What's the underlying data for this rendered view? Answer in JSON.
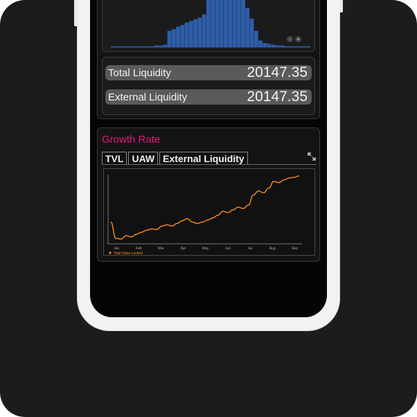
{
  "liquidity": {
    "total_label": "Total Liquidity",
    "total_value": "20147.35",
    "external_label": "External Liquidity",
    "external_value": "20147.35",
    "zoom_out": "-",
    "zoom_in": "+"
  },
  "growth": {
    "title": "Growth Rate",
    "tabs": [
      "TVL",
      "UAW",
      "External Liquidity"
    ],
    "title_color": "#e0197d"
  },
  "chart_data": {
    "type": "line",
    "x_labels": [
      "Jan",
      "Feb",
      "Mar",
      "Apr",
      "May",
      "Jun",
      "Jul",
      "Aug",
      "Sep"
    ],
    "series": [
      {
        "name": "Total Value Locked",
        "color": "#ff8c1a",
        "values": [
          30,
          6,
          5,
          10,
          8,
          12,
          15,
          18,
          20,
          19,
          24,
          26,
          24,
          28,
          32,
          35,
          30,
          28,
          30,
          33,
          36,
          40,
          46,
          44,
          48,
          52,
          50,
          55,
          70,
          76,
          73,
          80,
          90,
          88,
          92,
          95,
          96,
          98
        ]
      }
    ],
    "ylim": [
      0,
      100
    ],
    "grid": false,
    "legend": "bottom-left"
  },
  "histogram": {
    "type": "bar",
    "color": "#2d5ea8",
    "values": [
      1,
      1,
      1,
      1,
      1,
      1,
      1,
      1,
      1,
      1,
      2,
      2,
      3,
      20,
      22,
      25,
      27,
      30,
      32,
      34,
      36,
      40,
      60,
      72,
      88,
      96,
      80,
      98,
      100,
      90,
      70,
      48,
      35,
      20,
      8,
      5,
      4,
      3,
      2,
      2,
      1,
      1,
      1,
      1,
      1,
      1
    ]
  }
}
